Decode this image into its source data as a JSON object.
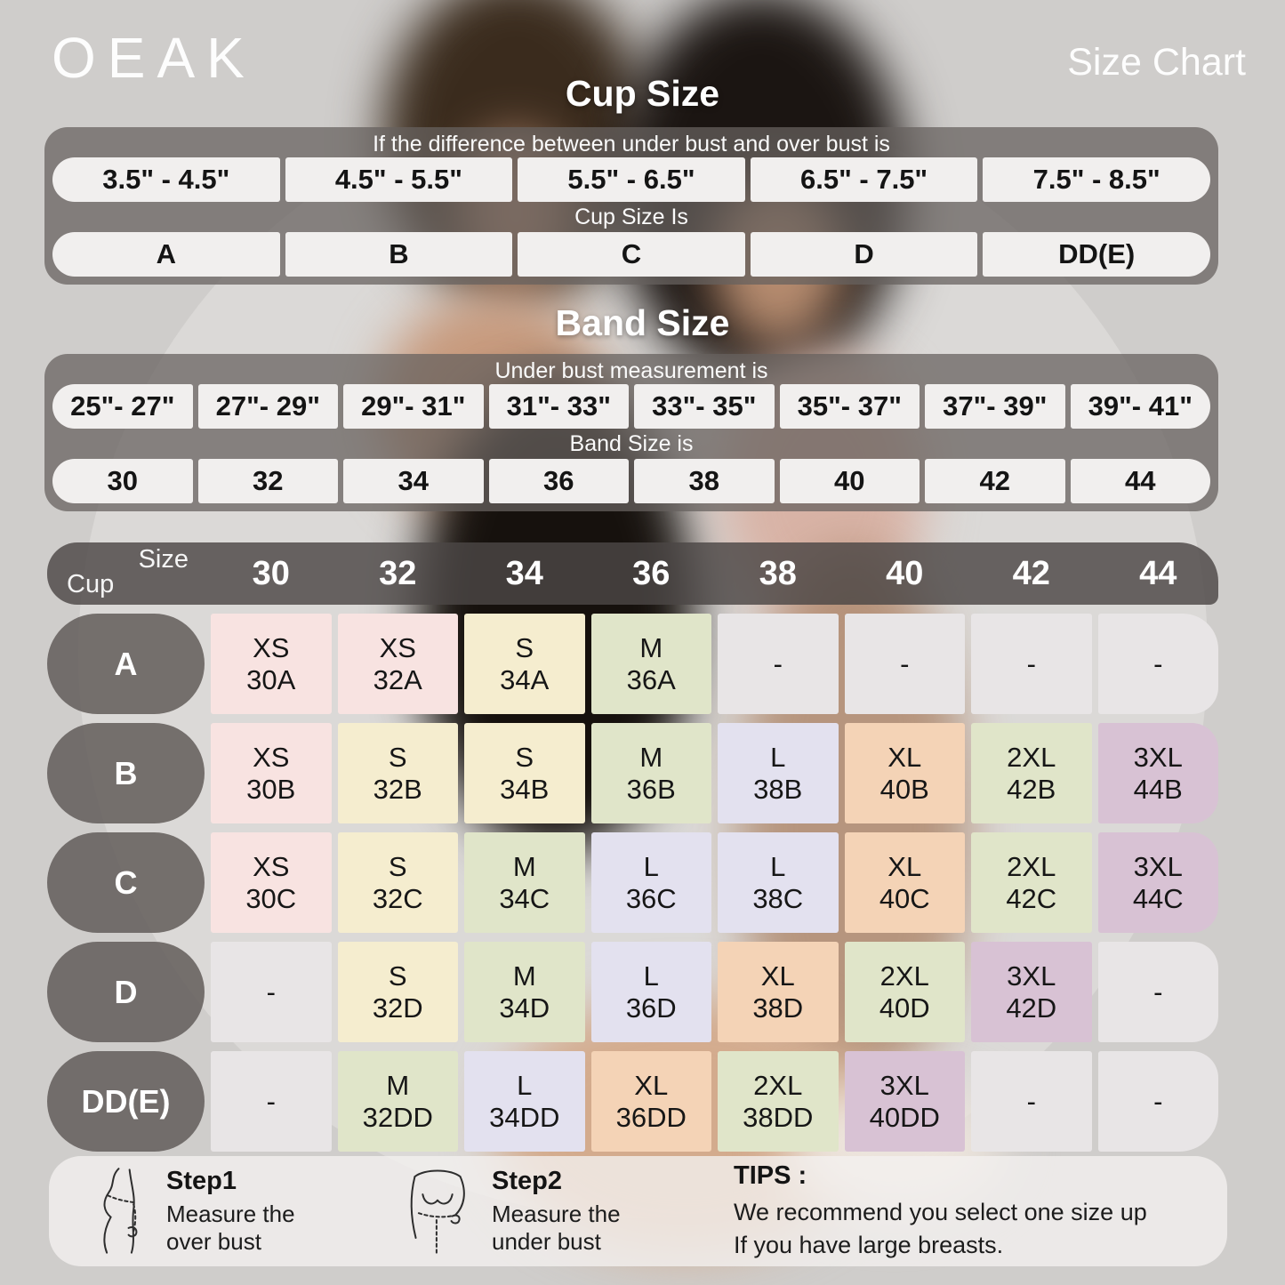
{
  "brand": "OEAK",
  "page_title": "Size Chart",
  "cup_section": {
    "title": "Cup Size",
    "instruction": "If the  difference between under bust and over bust is",
    "ranges": [
      "3.5\" - 4.5\"",
      "4.5\" - 5.5\"",
      "5.5\" - 6.5\"",
      "6.5\" - 7.5\"",
      "7.5\" - 8.5\""
    ],
    "result_label": "Cup Size Is",
    "cups": [
      "A",
      "B",
      "C",
      "D",
      "DD(E)"
    ]
  },
  "band_section": {
    "title": "Band Size",
    "instruction": "Under bust measurement is",
    "ranges": [
      "25\"- 27\"",
      "27\"- 29\"",
      "29\"- 31\"",
      "31\"- 33\"",
      "33\"- 35\"",
      "35\"- 37\"",
      "37\"- 39\"",
      "39\"- 41\""
    ],
    "result_label": "Band Size is",
    "bands": [
      "30",
      "32",
      "34",
      "36",
      "38",
      "40",
      "42",
      "44"
    ]
  },
  "matrix": {
    "corner": {
      "top": "Size",
      "bottom": "Cup"
    },
    "columns": [
      "30",
      "32",
      "34",
      "36",
      "38",
      "40",
      "42",
      "44"
    ],
    "rows": [
      {
        "cup": "A",
        "cells": [
          {
            "size": "XS",
            "code": "30A",
            "color": "pink"
          },
          {
            "size": "XS",
            "code": "32A",
            "color": "pink"
          },
          {
            "size": "S",
            "code": "34A",
            "color": "cream"
          },
          {
            "size": "M",
            "code": "36A",
            "color": "green"
          },
          {
            "size": "-",
            "code": "",
            "color": "gray"
          },
          {
            "size": "-",
            "code": "",
            "color": "gray"
          },
          {
            "size": "-",
            "code": "",
            "color": "gray"
          },
          {
            "size": "-",
            "code": "",
            "color": "gray"
          }
        ]
      },
      {
        "cup": "B",
        "cells": [
          {
            "size": "XS",
            "code": "30B",
            "color": "pink"
          },
          {
            "size": "S",
            "code": "32B",
            "color": "cream"
          },
          {
            "size": "S",
            "code": "34B",
            "color": "cream"
          },
          {
            "size": "M",
            "code": "36B",
            "color": "green"
          },
          {
            "size": "L",
            "code": "38B",
            "color": "lavender"
          },
          {
            "size": "XL",
            "code": "40B",
            "color": "peach"
          },
          {
            "size": "2XL",
            "code": "42B",
            "color": "green"
          },
          {
            "size": "3XL",
            "code": "44B",
            "color": "mauve"
          }
        ]
      },
      {
        "cup": "C",
        "cells": [
          {
            "size": "XS",
            "code": "30C",
            "color": "pink"
          },
          {
            "size": "S",
            "code": "32C",
            "color": "cream"
          },
          {
            "size": "M",
            "code": "34C",
            "color": "green"
          },
          {
            "size": "L",
            "code": "36C",
            "color": "lavender"
          },
          {
            "size": "L",
            "code": "38C",
            "color": "lavender"
          },
          {
            "size": "XL",
            "code": "40C",
            "color": "peach"
          },
          {
            "size": "2XL",
            "code": "42C",
            "color": "green"
          },
          {
            "size": "3XL",
            "code": "44C",
            "color": "mauve"
          }
        ]
      },
      {
        "cup": "D",
        "cells": [
          {
            "size": "-",
            "code": "",
            "color": "gray"
          },
          {
            "size": "S",
            "code": "32D",
            "color": "cream"
          },
          {
            "size": "M",
            "code": "34D",
            "color": "green"
          },
          {
            "size": "L",
            "code": "36D",
            "color": "lavender"
          },
          {
            "size": "XL",
            "code": "38D",
            "color": "peach"
          },
          {
            "size": "2XL",
            "code": "40D",
            "color": "green"
          },
          {
            "size": "3XL",
            "code": "42D",
            "color": "mauve"
          },
          {
            "size": "-",
            "code": "",
            "color": "gray"
          }
        ]
      },
      {
        "cup": "DD(E)",
        "cells": [
          {
            "size": "-",
            "code": "",
            "color": "gray"
          },
          {
            "size": "M",
            "code": "32DD",
            "color": "green"
          },
          {
            "size": "L",
            "code": "34DD",
            "color": "lavender"
          },
          {
            "size": "XL",
            "code": "36DD",
            "color": "peach"
          },
          {
            "size": "2XL",
            "code": "38DD",
            "color": "green"
          },
          {
            "size": "3XL",
            "code": "40DD",
            "color": "mauve"
          },
          {
            "size": "-",
            "code": "",
            "color": "gray"
          },
          {
            "size": "-",
            "code": "",
            "color": "gray"
          }
        ]
      }
    ]
  },
  "colors": {
    "pink": "#f8e3e1",
    "cream": "#f5edcf",
    "green": "#e0e5c9",
    "lavender": "#e3e1ef",
    "peach": "#f4d3b6",
    "mauve": "#d8c2d4",
    "gray": "#e8e5e6"
  },
  "footer": {
    "steps": [
      {
        "title": "Step1",
        "text": "Measure the\nover bust",
        "icon": "measure-over-bust-icon"
      },
      {
        "title": "Step2",
        "text": "Measure the\nunder bust",
        "icon": "measure-under-bust-icon"
      }
    ],
    "tips_title": "TIPS :",
    "tips_text": "We recommend you select one size up\nIf you have large breasts."
  }
}
